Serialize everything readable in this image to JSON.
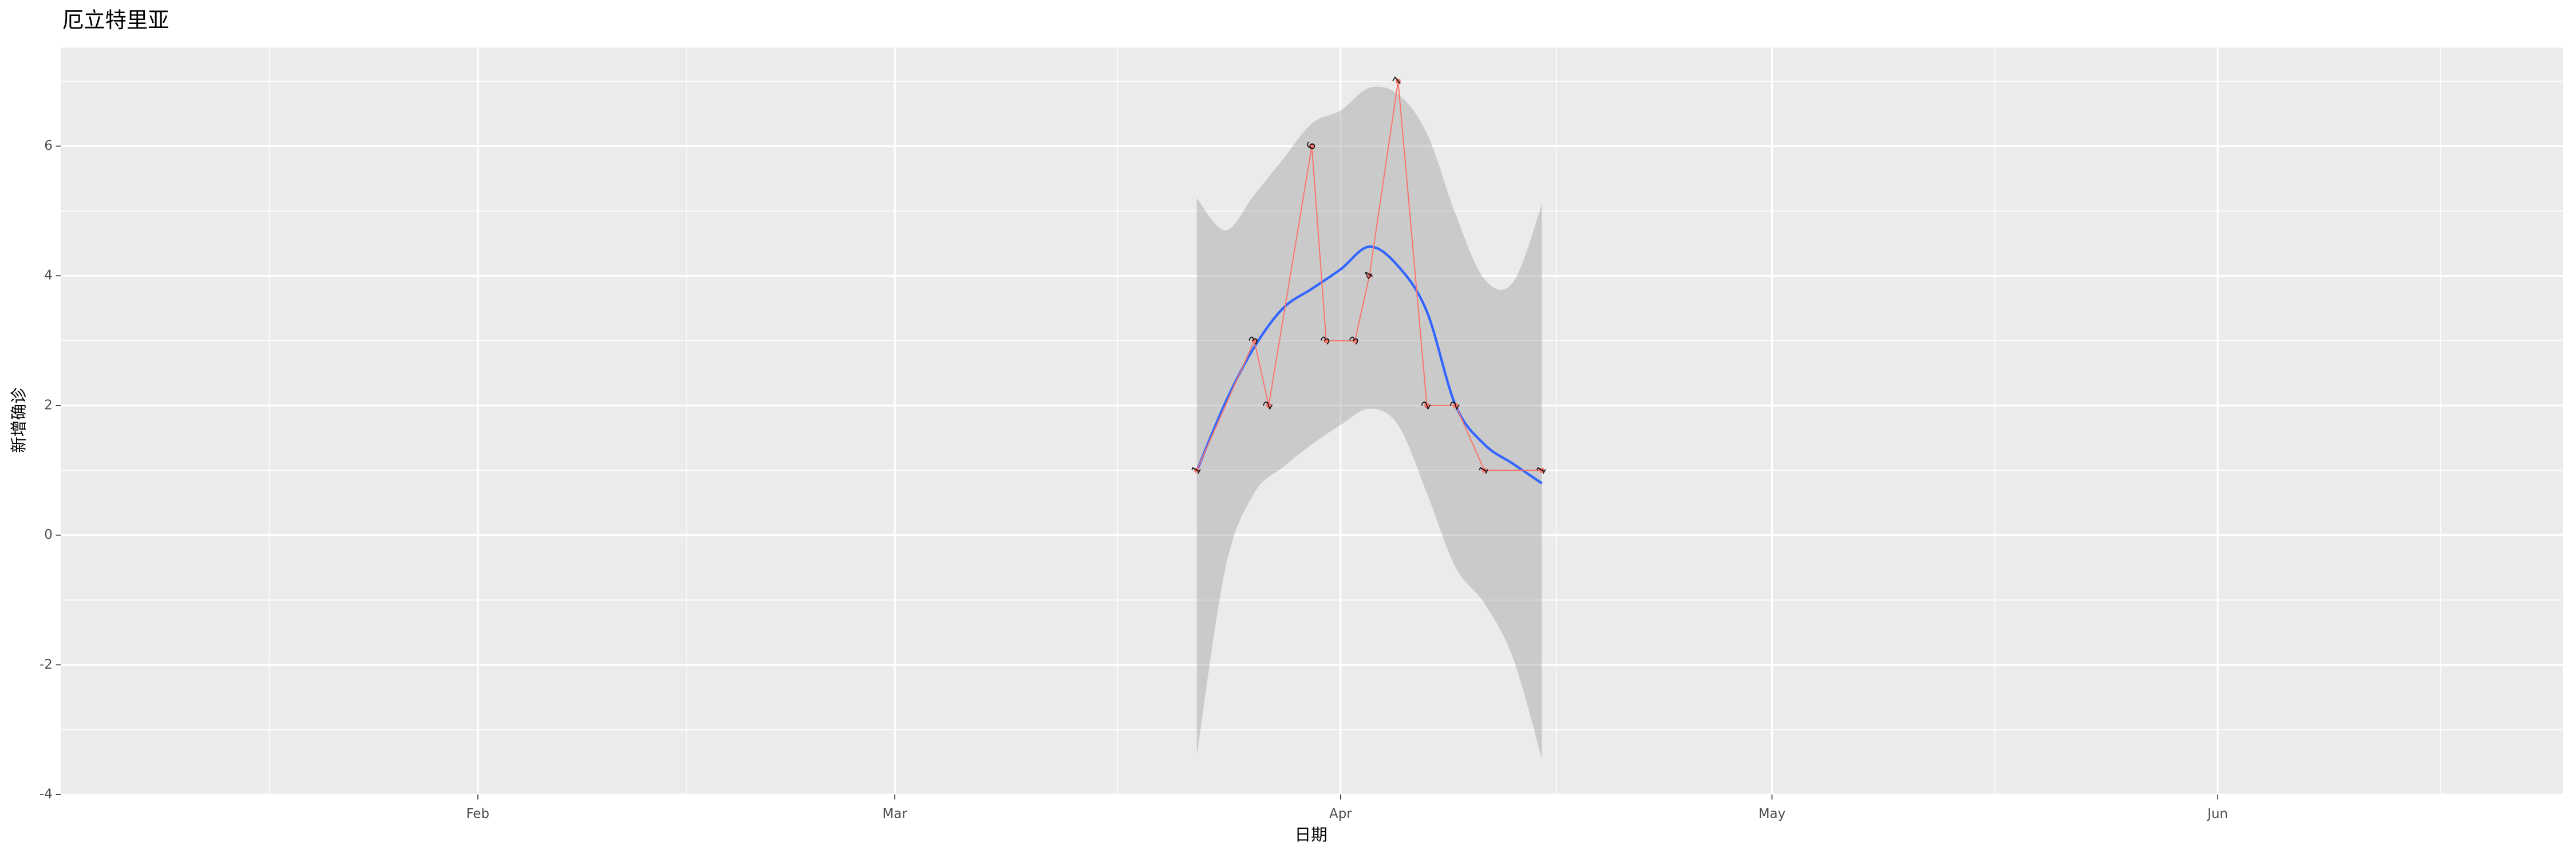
{
  "chart_data": {
    "type": "line",
    "title": "厄立特里亚",
    "x_label": "日期",
    "y_label": "新增确诊",
    "x": [
      82,
      86,
      87,
      90,
      91,
      93,
      94,
      96,
      98,
      100,
      102,
      106
    ],
    "values": [
      1,
      3,
      2,
      6,
      3,
      3,
      4,
      7,
      2,
      2,
      1,
      1
    ],
    "color": "#F8766D",
    "smooth": {
      "color": "#3366FF",
      "band_color": "#999999",
      "x": [
        82,
        84,
        86,
        88,
        90,
        92,
        94,
        96,
        98,
        100,
        102,
        104,
        106
      ],
      "values": [
        0.99,
        2.05,
        2.9,
        3.5,
        3.8,
        4.1,
        4.45,
        4.15,
        3.45,
        2.0,
        1.4,
        1.1,
        0.8
      ],
      "lower": [
        -3.4,
        -0.5,
        0.65,
        1.05,
        1.4,
        1.7,
        1.95,
        1.7,
        0.65,
        -0.5,
        -1.05,
        -1.9,
        -3.45
      ],
      "upper": [
        5.2,
        4.7,
        5.25,
        5.8,
        6.35,
        6.55,
        6.9,
        6.8,
        6.2,
        4.95,
        3.95,
        3.9,
        5.1
      ]
    },
    "xlim": [
      3,
      177
    ],
    "xticks": [
      {
        "value": 32,
        "label": "Feb"
      },
      {
        "value": 61,
        "label": "Mar"
      },
      {
        "value": 92,
        "label": "Apr"
      },
      {
        "value": 122,
        "label": "May"
      },
      {
        "value": 153,
        "label": "Jun"
      }
    ],
    "ylim": [
      -4,
      7.52
    ],
    "yticks": [
      -4,
      -2,
      0,
      2,
      4,
      6
    ],
    "grid": true
  }
}
